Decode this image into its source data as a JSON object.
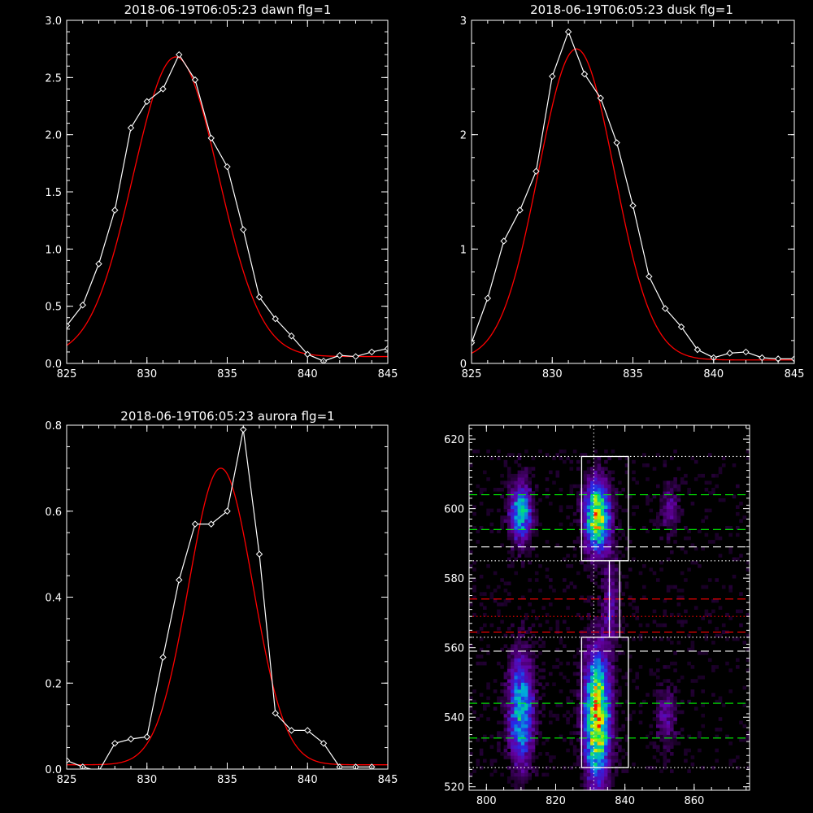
{
  "colors": {
    "background": "#000000",
    "axis": "#ffffff",
    "data": "#ffffff",
    "fit": "#ff0000",
    "box": "#ffffff",
    "green_dash": "#00ff00",
    "red_dash": "#ff0000"
  },
  "chart_data": [
    {
      "type": "line",
      "title": "2018-06-19T06:05:23 dawn flg=1",
      "xlim": [
        825,
        845
      ],
      "ylim": [
        0,
        3
      ],
      "xticks": [
        825,
        830,
        835,
        840,
        845
      ],
      "yticks": [
        0,
        0.5,
        1.0,
        1.5,
        2.0,
        2.5,
        3.0
      ],
      "ytick_labels": [
        "0.0",
        "0.5",
        "1.0",
        "1.5",
        "2.0",
        "2.5",
        "3.0"
      ],
      "series": [
        {
          "role": "data",
          "marker": "diamond",
          "x": [
            825,
            826,
            827,
            828,
            829,
            830,
            831,
            832,
            833,
            834,
            835,
            836,
            837,
            838,
            839,
            840,
            841,
            842,
            843,
            844,
            845
          ],
          "y": [
            0.33,
            0.51,
            0.87,
            1.34,
            2.06,
            2.29,
            2.4,
            2.7,
            2.48,
            1.97,
            1.72,
            1.17,
            0.58,
            0.39,
            0.24,
            0.08,
            0.02,
            0.07,
            0.06,
            0.1,
            0.13
          ]
        },
        {
          "role": "fit",
          "gaussian": {
            "amplitude": 2.62,
            "center": 831.8,
            "sigma": 2.65,
            "offset": 0.06
          }
        }
      ]
    },
    {
      "type": "line",
      "title": "2018-06-19T06:05:23 dusk flg=1",
      "xlim": [
        825,
        845
      ],
      "ylim": [
        0,
        3
      ],
      "xticks": [
        825,
        830,
        835,
        840,
        845
      ],
      "yticks": [
        0,
        1,
        2,
        3
      ],
      "ytick_labels": [
        "0",
        "1",
        "2",
        "3"
      ],
      "series": [
        {
          "role": "data",
          "marker": "diamond",
          "x": [
            825,
            826,
            827,
            828,
            829,
            830,
            831,
            832,
            833,
            834,
            835,
            836,
            837,
            838,
            839,
            840,
            841,
            842,
            843,
            844,
            845
          ],
          "y": [
            0.18,
            0.57,
            1.07,
            1.34,
            1.68,
            2.51,
            2.9,
            2.53,
            2.32,
            1.93,
            1.38,
            0.76,
            0.48,
            0.32,
            0.12,
            0.05,
            0.09,
            0.1,
            0.05,
            0.04,
            0.04
          ]
        },
        {
          "role": "fit",
          "gaussian": {
            "amplitude": 2.72,
            "center": 831.5,
            "sigma": 2.35,
            "offset": 0.03
          }
        }
      ]
    },
    {
      "type": "line",
      "title": "2018-06-19T06:05:23 aurora flg=1",
      "xlim": [
        825,
        845
      ],
      "ylim": [
        0,
        0.8
      ],
      "xticks": [
        825,
        830,
        835,
        840,
        845
      ],
      "yticks": [
        0,
        0.2,
        0.4,
        0.6,
        0.8
      ],
      "ytick_labels": [
        "0.0",
        "0.2",
        "0.4",
        "0.6",
        "0.8"
      ],
      "series": [
        {
          "role": "data",
          "marker": "diamond",
          "x": [
            825,
            826,
            827,
            828,
            829,
            830,
            831,
            832,
            833,
            834,
            835,
            836,
            837,
            838,
            839,
            840,
            841,
            842,
            843,
            844
          ],
          "y": [
            0.02,
            0.005,
            -0.005,
            0.06,
            0.07,
            0.075,
            0.26,
            0.44,
            0.57,
            0.57,
            0.6,
            0.79,
            0.5,
            0.13,
            0.09,
            0.09,
            0.06,
            0.005,
            0.005,
            0.005
          ]
        },
        {
          "role": "fit",
          "gaussian": {
            "amplitude": 0.69,
            "center": 834.6,
            "sigma": 2.0,
            "offset": 0.01
          }
        }
      ]
    },
    {
      "type": "heatmap",
      "xlim": [
        795,
        876
      ],
      "ylim": [
        519,
        624
      ],
      "xticks": [
        800,
        820,
        840,
        860
      ],
      "yticks": [
        520,
        540,
        560,
        580,
        600,
        620
      ],
      "ytick_labels": [
        "520",
        "540",
        "560",
        "580",
        "600",
        "620"
      ],
      "blobs": [
        {
          "x": 810,
          "y": 599,
          "sx": 2.3,
          "sy": 6,
          "amp": 0.6
        },
        {
          "x": 832,
          "y": 598,
          "sx": 2.5,
          "sy": 7,
          "amp": 0.92
        },
        {
          "x": 853,
          "y": 600,
          "sx": 2.0,
          "sy": 5,
          "amp": 0.22
        },
        {
          "x": 810,
          "y": 542,
          "sx": 2.5,
          "sy": 11,
          "amp": 0.62
        },
        {
          "x": 832,
          "y": 540,
          "sx": 2.6,
          "sy": 13,
          "amp": 0.95
        },
        {
          "x": 852,
          "y": 540,
          "sx": 2.0,
          "sy": 6,
          "amp": 0.25
        },
        {
          "x": 836,
          "y": 573,
          "sx": 1.6,
          "sy": 9,
          "amp": 0.25
        }
      ],
      "boxes": [
        {
          "x0": 827.5,
          "x1": 841,
          "y0": 585,
          "y1": 615
        },
        {
          "x0": 835.5,
          "x1": 838.5,
          "y0": 563,
          "y1": 585
        },
        {
          "x0": 827.5,
          "x1": 841,
          "y0": 525.5,
          "y1": 563
        }
      ],
      "vline_dotted": 831,
      "hlines": [
        {
          "y": 615,
          "style": "dotted",
          "color": "white"
        },
        {
          "y": 604,
          "style": "dashed",
          "color": "green"
        },
        {
          "y": 594,
          "style": "dashed",
          "color": "green"
        },
        {
          "y": 589,
          "style": "dashed",
          "color": "white"
        },
        {
          "y": 585,
          "style": "dotted",
          "color": "white"
        },
        {
          "y": 574,
          "style": "dashed",
          "color": "red"
        },
        {
          "y": 569,
          "style": "dotted",
          "color": "red"
        },
        {
          "y": 564.5,
          "style": "dashed",
          "color": "red"
        },
        {
          "y": 563,
          "style": "dotted",
          "color": "white"
        },
        {
          "y": 559,
          "style": "dashed",
          "color": "white"
        },
        {
          "y": 544,
          "style": "dashed",
          "color": "green"
        },
        {
          "y": 534,
          "style": "dashed",
          "color": "green"
        },
        {
          "y": 525.5,
          "style": "dotted",
          "color": "white"
        }
      ]
    }
  ]
}
